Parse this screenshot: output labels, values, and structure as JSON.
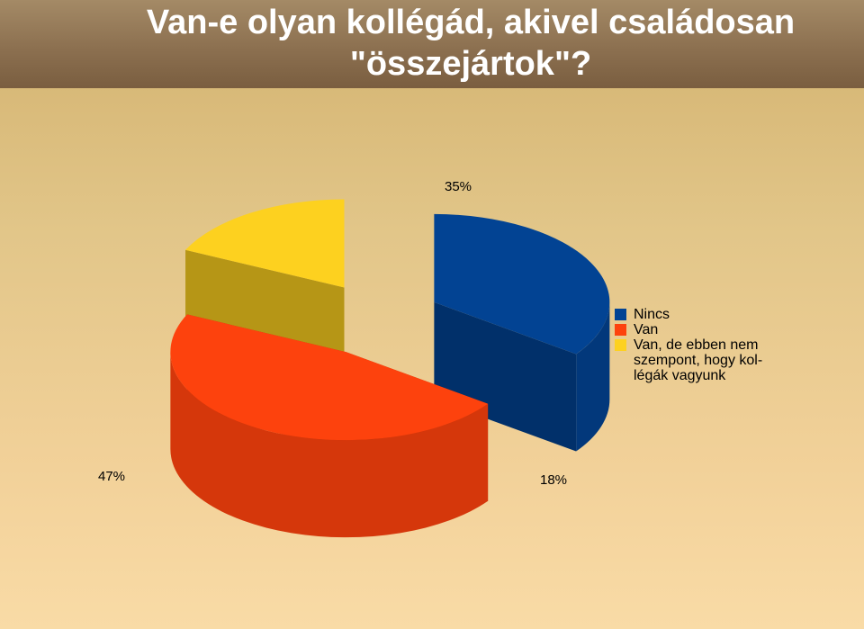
{
  "title": {
    "line1": "Van-e olyan kollégád, akivel családosan",
    "line2": "\"összejártok\"?"
  },
  "colors": {
    "nincs": "#024393",
    "van": "#fd420d",
    "van_de": "#fdd11f"
  },
  "chart_data": {
    "type": "pie",
    "style": "3d-exploded",
    "categories": [
      "Nincs",
      "Van",
      "Van, de ebben nem szempont, hogy kol-\nlégák vagyunk"
    ],
    "values": [
      35,
      47,
      18
    ],
    "data_labels": [
      "35%",
      "47%",
      "18%"
    ],
    "legend_position": "right"
  }
}
